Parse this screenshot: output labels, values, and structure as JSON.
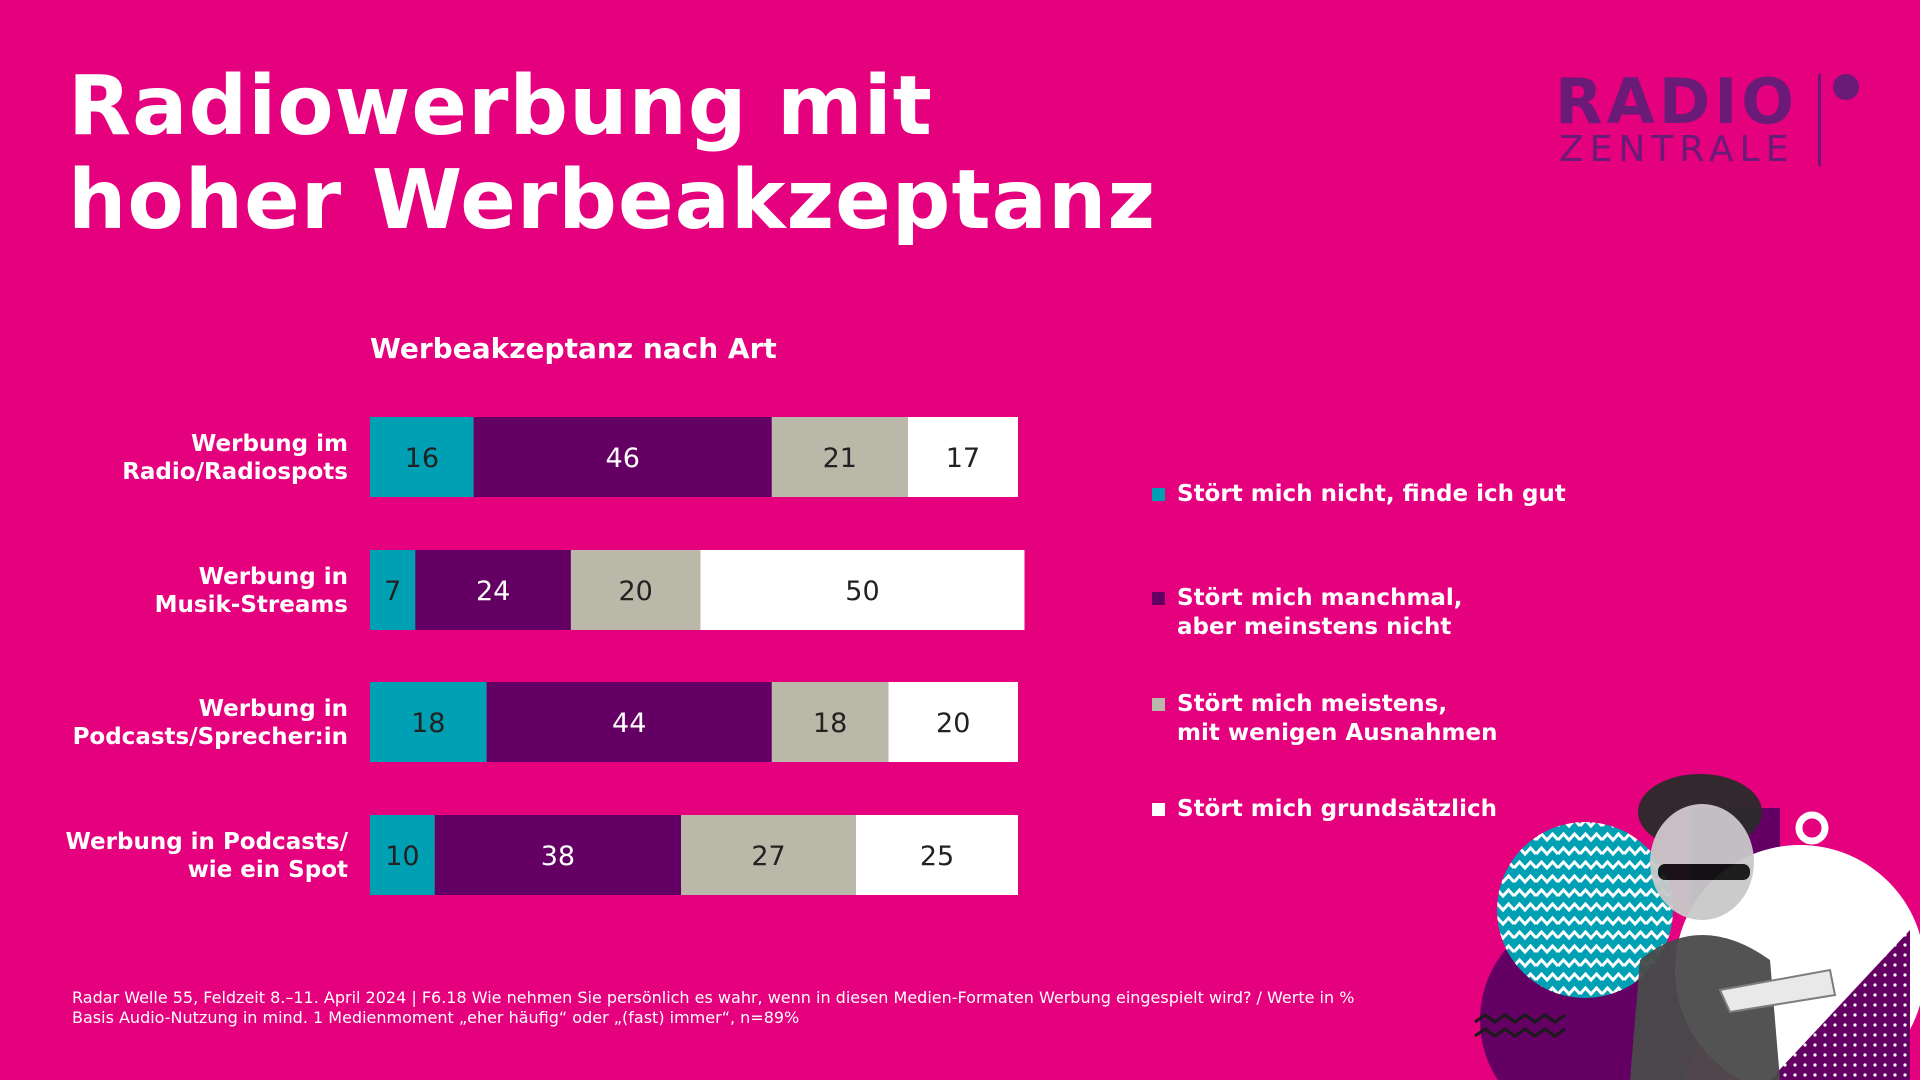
{
  "title_lines": [
    "Radiowerbung mit",
    "hoher Werbeakzeptanz"
  ],
  "logo": {
    "line1": "RADIO",
    "line2": "ZENTRALE",
    "color": "#6A1B78"
  },
  "colors": {
    "background": "#E5007D",
    "teal": "#00A0B4",
    "purple": "#640064",
    "gray": "#BAB8A8",
    "white": "#FFFFFF"
  },
  "chart_data": {
    "type": "bar",
    "orientation": "horizontal-stacked-100",
    "title": "Werbeakzeptanz nach Art",
    "categories": [
      "Werbung im\nRadio/Radiospots",
      "Werbung in\nMusik-Streams",
      "Werbung in\nPodcasts/Sprecher:in",
      "Werbung in Podcasts/\nwie ein Spot"
    ],
    "series": [
      {
        "name": "Stört mich nicht, finde ich gut",
        "color": "#00A0B4",
        "values": [
          16,
          7,
          18,
          10
        ]
      },
      {
        "name": "Stört mich manchmal,\naber meinstens nicht",
        "color": "#640064",
        "values": [
          46,
          24,
          44,
          38
        ]
      },
      {
        "name": "Stört mich meistens,\nmit wenigen Ausnahmen",
        "color": "#BAB8A8",
        "values": [
          21,
          20,
          18,
          27
        ]
      },
      {
        "name": "Stört mich grundsätzlich",
        "color": "#FFFFFF",
        "values": [
          17,
          50,
          20,
          25
        ]
      }
    ],
    "xlim": [
      0,
      100
    ],
    "unit": "%",
    "grid": false,
    "legend_position": "right"
  },
  "footnote": "Radar Welle 55, Feldzeit 8.–11. April 2024 | F6.18 Wie nehmen Sie persönlich es wahr, wenn in diesen Medien-Formaten Werbung eingespielt wird? / Werte in %\n Basis Audio-Nutzung in mind. 1 Medienmoment „eher häufig“ oder „(fast) immer“, n=89%"
}
